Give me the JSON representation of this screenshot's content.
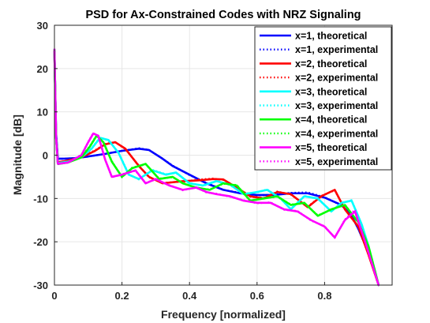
{
  "chart_data": {
    "type": "line",
    "title": "PSD for Ax-Constrained Codes with NRZ Signaling",
    "xlabel": "Frequency [normalized]",
    "ylabel": "Magnitude [dB]",
    "xlim": [
      0,
      1
    ],
    "ylim": [
      -30,
      30
    ],
    "xticks": [
      "0",
      "0.2",
      "0.4",
      "0.6",
      "0.8"
    ],
    "xtick_values": [
      0,
      0.2,
      0.4,
      0.6,
      0.8
    ],
    "yticks": [
      "30",
      "20",
      "10",
      "0",
      "-10",
      "-20",
      "-30"
    ],
    "ytick_values": [
      30,
      20,
      10,
      0,
      -10,
      -20,
      -30
    ],
    "grid": true,
    "legend_position": "top-right",
    "series": [
      {
        "name": "x=1, theoretical",
        "color": "#0000ff",
        "style": "solid",
        "x": [
          0,
          0.005,
          0.01,
          0.03,
          0.06,
          0.1,
          0.15,
          0.2,
          0.25,
          0.28,
          0.32,
          0.35,
          0.4,
          0.45,
          0.5,
          0.55,
          0.6,
          0.65,
          0.7,
          0.75,
          0.8,
          0.85,
          0.88,
          0.9,
          0.93,
          0.96
        ],
        "y": [
          24,
          5,
          -0.8,
          -0.8,
          -0.7,
          -0.3,
          0.3,
          1.0,
          1.5,
          1.2,
          -0.8,
          -2.5,
          -4.5,
          -6.5,
          -8.0,
          -8.8,
          -9.2,
          -9.2,
          -8.8,
          -8.8,
          -9.8,
          -11.5,
          -14,
          -17,
          -22.5,
          -30
        ]
      },
      {
        "name": "x=1, experimental",
        "color": "#0000ff",
        "style": "dotted",
        "x": [
          0,
          0.005,
          0.01,
          0.03,
          0.06,
          0.1,
          0.15,
          0.2,
          0.25,
          0.28,
          0.32,
          0.35,
          0.4,
          0.45,
          0.5,
          0.55,
          0.6,
          0.65,
          0.7,
          0.75,
          0.8,
          0.85,
          0.88,
          0.9,
          0.93,
          0.96
        ],
        "y": [
          24.5,
          5,
          -0.9,
          -0.8,
          -0.7,
          -0.3,
          0.3,
          1.0,
          1.6,
          1.2,
          -0.8,
          -2.4,
          -4.6,
          -6.4,
          -8.0,
          -8.7,
          -9.3,
          -9.1,
          -8.7,
          -8.6,
          -9.7,
          -11.6,
          -14,
          -17,
          -22.6,
          -30
        ]
      },
      {
        "name": "x=2, theoretical",
        "color": "#ff0000",
        "style": "solid",
        "x": [
          0,
          0.005,
          0.01,
          0.03,
          0.08,
          0.12,
          0.15,
          0.18,
          0.21,
          0.25,
          0.28,
          0.32,
          0.38,
          0.43,
          0.47,
          0.5,
          0.54,
          0.58,
          0.62,
          0.66,
          0.7,
          0.75,
          0.79,
          0.83,
          0.86,
          0.9,
          0.93,
          0.96
        ],
        "y": [
          24,
          4,
          -1.6,
          -1.4,
          -0.5,
          1.0,
          2.5,
          3.0,
          1.5,
          -2.5,
          -5.0,
          -6.5,
          -6.0,
          -5.8,
          -5.5,
          -5.6,
          -7.5,
          -9.5,
          -10.0,
          -8.5,
          -9.0,
          -12.0,
          -9.5,
          -8.0,
          -12.5,
          -16.5,
          -23,
          -30
        ]
      },
      {
        "name": "x=2, experimental",
        "color": "#ff0000",
        "style": "dotted",
        "x": [
          0,
          0.005,
          0.01,
          0.03,
          0.08,
          0.12,
          0.15,
          0.18,
          0.21,
          0.25,
          0.28,
          0.32,
          0.38,
          0.43,
          0.47,
          0.5,
          0.54,
          0.58,
          0.62,
          0.66,
          0.7,
          0.75,
          0.79,
          0.83,
          0.86,
          0.9,
          0.93,
          0.96
        ],
        "y": [
          24.3,
          4,
          -1.7,
          -1.4,
          -0.4,
          1.1,
          2.6,
          3.0,
          1.4,
          -2.4,
          -5.1,
          -6.4,
          -6.1,
          -5.6,
          -5.4,
          -5.7,
          -7.4,
          -9.6,
          -9.9,
          -8.4,
          -9.1,
          -11.9,
          -9.4,
          -8.1,
          -12.4,
          -16.6,
          -23,
          -30
        ]
      },
      {
        "name": "x=3, theoretical",
        "color": "#00ffff",
        "style": "solid",
        "x": [
          0,
          0.005,
          0.01,
          0.04,
          0.08,
          0.11,
          0.135,
          0.16,
          0.19,
          0.22,
          0.25,
          0.29,
          0.33,
          0.36,
          0.4,
          0.44,
          0.48,
          0.52,
          0.56,
          0.6,
          0.63,
          0.67,
          0.7,
          0.74,
          0.78,
          0.82,
          0.85,
          0.88,
          0.91,
          0.93,
          0.96
        ],
        "y": [
          24,
          4,
          -1.8,
          -1.5,
          -0.5,
          1.5,
          4.0,
          3.5,
          0.5,
          -4.5,
          -5.5,
          -3.5,
          -4.5,
          -4.0,
          -6.5,
          -7.0,
          -6.0,
          -6.8,
          -9.0,
          -8.5,
          -8.0,
          -10.0,
          -12.5,
          -9.5,
          -10.0,
          -13.0,
          -11.0,
          -10.5,
          -16,
          -21,
          -30
        ]
      },
      {
        "name": "x=3, experimental",
        "color": "#00ffff",
        "style": "dotted",
        "x": [
          0,
          0.005,
          0.01,
          0.04,
          0.08,
          0.11,
          0.135,
          0.16,
          0.19,
          0.22,
          0.25,
          0.29,
          0.33,
          0.36,
          0.4,
          0.44,
          0.48,
          0.52,
          0.56,
          0.6,
          0.63,
          0.67,
          0.7,
          0.74,
          0.78,
          0.82,
          0.85,
          0.88,
          0.91,
          0.93,
          0.96
        ],
        "y": [
          24.2,
          4,
          -1.9,
          -1.5,
          -0.4,
          1.6,
          4.1,
          3.4,
          0.6,
          -4.4,
          -5.6,
          -3.4,
          -4.4,
          -4.1,
          -6.4,
          -7.1,
          -5.9,
          -6.9,
          -8.9,
          -8.6,
          -7.9,
          -10.1,
          -12.4,
          -9.4,
          -10.1,
          -12.9,
          -11.1,
          -10.4,
          -16,
          -21,
          -30
        ]
      },
      {
        "name": "x=4, theoretical",
        "color": "#00ff00",
        "style": "solid",
        "x": [
          0,
          0.005,
          0.01,
          0.04,
          0.08,
          0.105,
          0.125,
          0.145,
          0.17,
          0.2,
          0.23,
          0.27,
          0.31,
          0.35,
          0.38,
          0.42,
          0.46,
          0.5,
          0.54,
          0.58,
          0.62,
          0.66,
          0.7,
          0.74,
          0.78,
          0.82,
          0.86,
          0.9,
          0.93,
          0.96
        ],
        "y": [
          24,
          4,
          -2.0,
          -1.7,
          -0.5,
          2.0,
          4.5,
          3.0,
          -1.5,
          -5.0,
          -3.0,
          -2.0,
          -5.5,
          -5.0,
          -6.5,
          -7.5,
          -8.0,
          -6.5,
          -7.0,
          -10.5,
          -10.0,
          -9.5,
          -11.5,
          -11.0,
          -14.0,
          -12.5,
          -11.5,
          -15.5,
          -21,
          -30
        ]
      },
      {
        "name": "x=4, experimental",
        "color": "#00ff00",
        "style": "dotted",
        "x": [
          0,
          0.005,
          0.01,
          0.04,
          0.08,
          0.105,
          0.125,
          0.145,
          0.17,
          0.2,
          0.23,
          0.27,
          0.31,
          0.35,
          0.38,
          0.42,
          0.46,
          0.5,
          0.54,
          0.58,
          0.62,
          0.66,
          0.7,
          0.74,
          0.78,
          0.82,
          0.86,
          0.9,
          0.93,
          0.96
        ],
        "y": [
          24.1,
          4,
          -2.1,
          -1.7,
          -0.4,
          2.1,
          4.6,
          2.9,
          -1.4,
          -5.1,
          -2.9,
          -2.1,
          -5.4,
          -5.1,
          -6.4,
          -7.6,
          -7.9,
          -6.6,
          -6.9,
          -10.6,
          -9.9,
          -9.6,
          -11.4,
          -11.1,
          -13.9,
          -12.6,
          -11.4,
          -15.6,
          -21,
          -30
        ]
      },
      {
        "name": "x=5, theoretical",
        "color": "#ff00ff",
        "style": "solid",
        "x": [
          0,
          0.005,
          0.01,
          0.04,
          0.08,
          0.1,
          0.115,
          0.13,
          0.15,
          0.17,
          0.2,
          0.24,
          0.27,
          0.3,
          0.34,
          0.38,
          0.42,
          0.45,
          0.48,
          0.52,
          0.56,
          0.6,
          0.64,
          0.68,
          0.72,
          0.76,
          0.8,
          0.83,
          0.86,
          0.89,
          0.92,
          0.96
        ],
        "y": [
          24,
          4,
          -2.0,
          -1.7,
          0.0,
          3.0,
          5.0,
          4.5,
          -1.0,
          -5.0,
          -4.5,
          -3.5,
          -6.5,
          -5.5,
          -7.0,
          -8.0,
          -7.5,
          -8.5,
          -9.0,
          -9.5,
          -10.5,
          -11.0,
          -11.0,
          -12.5,
          -13.0,
          -15.0,
          -16.5,
          -19.0,
          -15.0,
          -13.0,
          -20,
          -30
        ]
      },
      {
        "name": "x=5, experimental",
        "color": "#ff00ff",
        "style": "dotted",
        "x": [
          0,
          0.005,
          0.01,
          0.04,
          0.08,
          0.1,
          0.115,
          0.13,
          0.15,
          0.17,
          0.2,
          0.24,
          0.27,
          0.3,
          0.34,
          0.38,
          0.42,
          0.45,
          0.48,
          0.52,
          0.56,
          0.6,
          0.64,
          0.68,
          0.72,
          0.76,
          0.8,
          0.83,
          0.86,
          0.89,
          0.92,
          0.96
        ],
        "y": [
          24.6,
          4,
          -2.1,
          -1.7,
          0.1,
          3.1,
          5.1,
          4.4,
          -0.9,
          -5.1,
          -4.4,
          -3.6,
          -6.4,
          -5.6,
          -6.9,
          -8.1,
          -7.4,
          -8.6,
          -8.9,
          -9.6,
          -10.4,
          -11.1,
          -10.9,
          -12.6,
          -12.9,
          -15.1,
          -16.4,
          -19.1,
          -14.9,
          -12.6,
          -20,
          -30
        ]
      }
    ]
  }
}
